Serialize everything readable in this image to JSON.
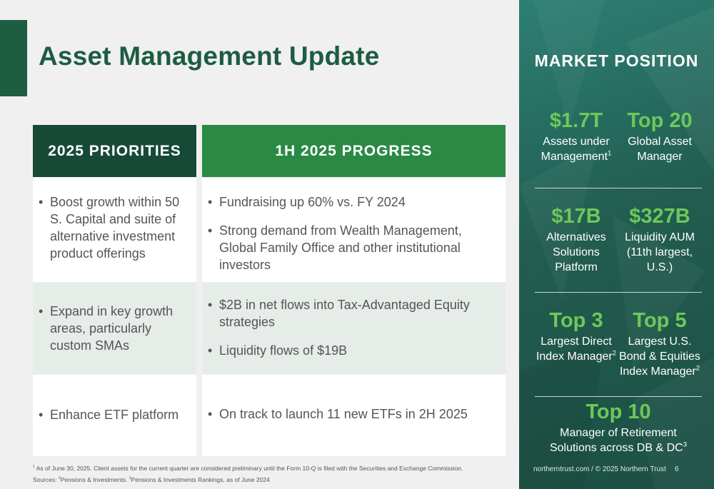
{
  "title": "Asset Management Update",
  "headers": {
    "left": "2025 PRIORITIES",
    "right": "1H 2025 PROGRESS"
  },
  "rows": [
    {
      "priority": "Boost growth within 50 S. Capital and suite of alternative investment product offerings",
      "progress": [
        "Fundraising up 60% vs. FY 2024",
        "Strong demand from Wealth Management, Global Family Office and other institutional investors"
      ]
    },
    {
      "priority": "Expand in key growth areas, particularly custom SMAs",
      "progress": [
        "$2B in net flows into Tax-Advantaged Equity strategies",
        "Liquidity flows of $19B"
      ]
    },
    {
      "priority": "Enhance ETF platform",
      "progress": [
        "On track to launch 11 new ETFs in 2H 2025"
      ]
    }
  ],
  "footnotes": {
    "line1_sup": "1",
    "line1": "As of June 30, 2025. Client assets for the current quarter are considered preliminary until the Form 10-Q is filed with the Securities and Exchange Commission.",
    "line2_prefix": "Sources:",
    "line2_sup2": "2",
    "line2_src2": "Pensions & Investments.",
    "line2_sup3": "3",
    "line2_src3": "Pensions & Investments Rankings, as of June 2024"
  },
  "panel": {
    "title": "MARKET POSITION",
    "stats": [
      {
        "value": "$1.7T",
        "desc": "Assets under Management",
        "sup": "1"
      },
      {
        "value": "Top 20",
        "desc": "Global Asset Manager",
        "sup": ""
      },
      {
        "value": "$17B",
        "desc": "Alternatives Solutions Platform",
        "sup": ""
      },
      {
        "value": "$327B",
        "desc": "Liquidity AUM (11th largest, U.S.)",
        "sup": ""
      },
      {
        "value": "Top 3",
        "desc": "Largest Direct Index Manager",
        "sup": "2"
      },
      {
        "value": "Top 5",
        "desc": "Largest U.S. Bond & Equities Index Manager",
        "sup": "2"
      },
      {
        "value": "Top 10",
        "desc": "Manager of Retirement Solutions across DB & DC",
        "sup": "3"
      }
    ],
    "footer": "northerntrust.com / © 2025 Northern Trust",
    "page": "6"
  },
  "colors": {
    "brand_dark": "#164a37",
    "brand_green": "#2a8a45",
    "stat_green": "#6ec85a",
    "panel": "#225d50"
  }
}
